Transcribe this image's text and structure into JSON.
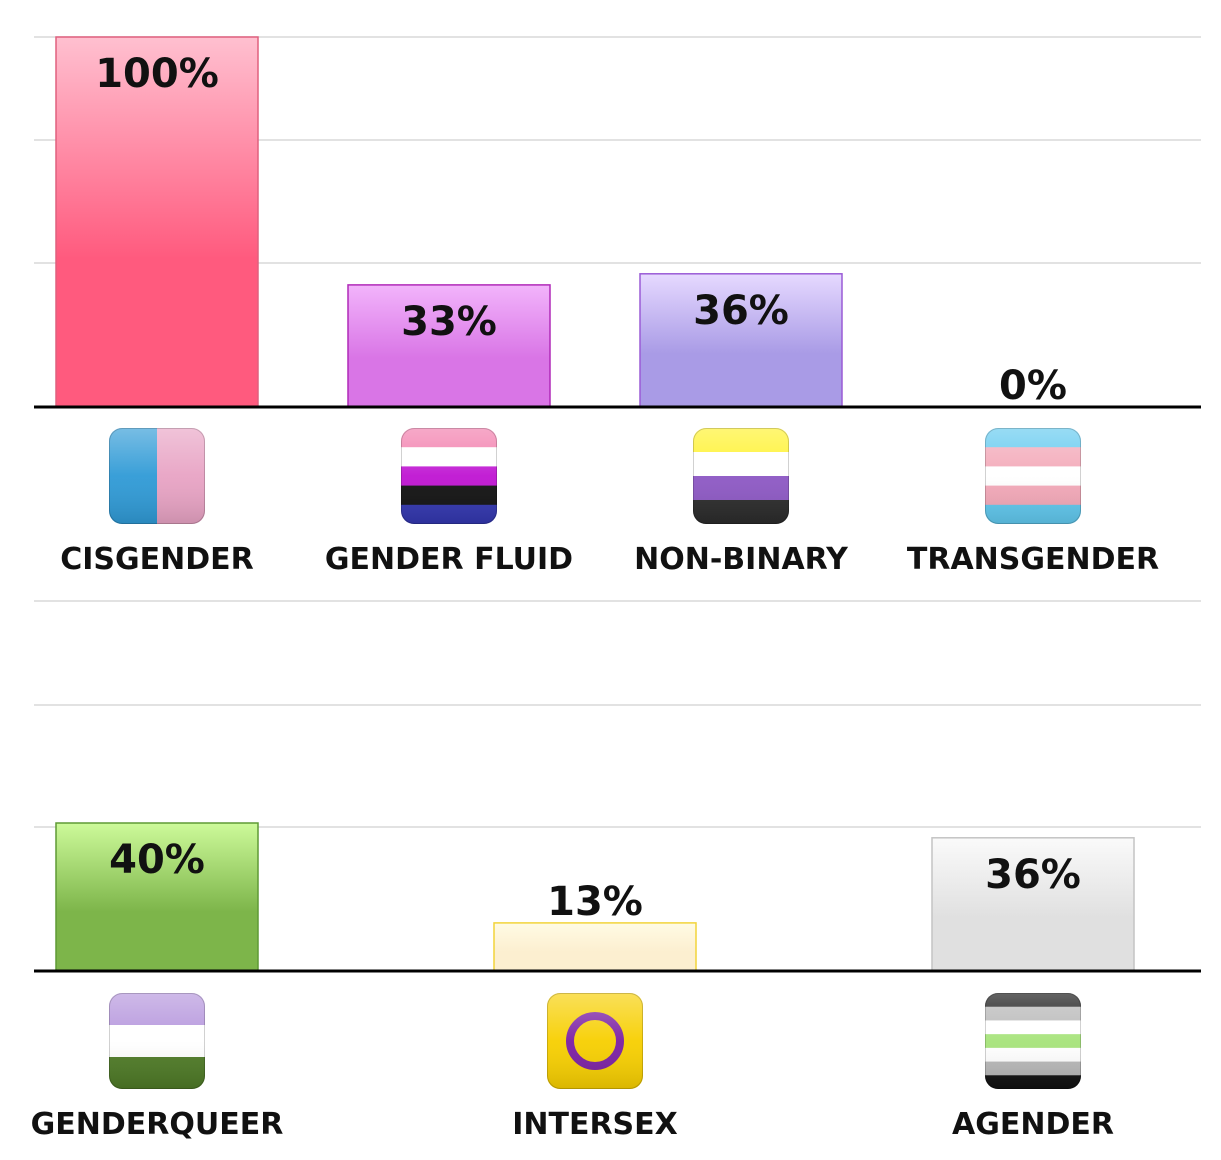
{
  "chart_data": [
    {
      "type": "bar",
      "categories": [
        "CISGENDER",
        "GENDER FLUID",
        "NON-BINARY",
        "TRANSGENDER"
      ],
      "values": [
        100,
        33,
        36,
        0
      ],
      "value_labels": [
        "100%",
        "33%",
        "36%",
        "0%"
      ],
      "icons": [
        "cisgender-flag-icon",
        "genderfluid-flag-icon",
        "nonbinary-flag-icon",
        "transgender-flag-icon"
      ],
      "bar_colors": [
        [
          "#ffc0d0",
          "#ff5a7e"
        ],
        [
          "#f2b4fb",
          "#d975e6"
        ],
        [
          "#e6d9ff",
          "#a99be6"
        ],
        [
          "#ffffff",
          "#ffffff"
        ]
      ],
      "bar_borders": [
        "#e0607e",
        "#b02ab8",
        "#9a5bd6",
        "#cccccc"
      ],
      "ylim": [
        0,
        100
      ],
      "grid": true
    },
    {
      "type": "bar",
      "categories": [
        "GENDERQUEER",
        "INTERSEX",
        "AGENDER"
      ],
      "values": [
        40,
        13,
        36
      ],
      "value_labels": [
        "40%",
        "13%",
        "36%"
      ],
      "icons": [
        "genderqueer-flag-icon",
        "intersex-flag-icon",
        "agender-flag-icon"
      ],
      "bar_colors": [
        [
          "#cdfa9a",
          "#7db54a"
        ],
        [
          "#fffbe4",
          "#fcefd0"
        ],
        [
          "#fafafa",
          "#e0e0e0"
        ]
      ],
      "bar_borders": [
        "#5f9a35",
        "#f2d43a",
        "#c4c4c4"
      ],
      "ylim": [
        0,
        100
      ],
      "grid": true
    }
  ]
}
